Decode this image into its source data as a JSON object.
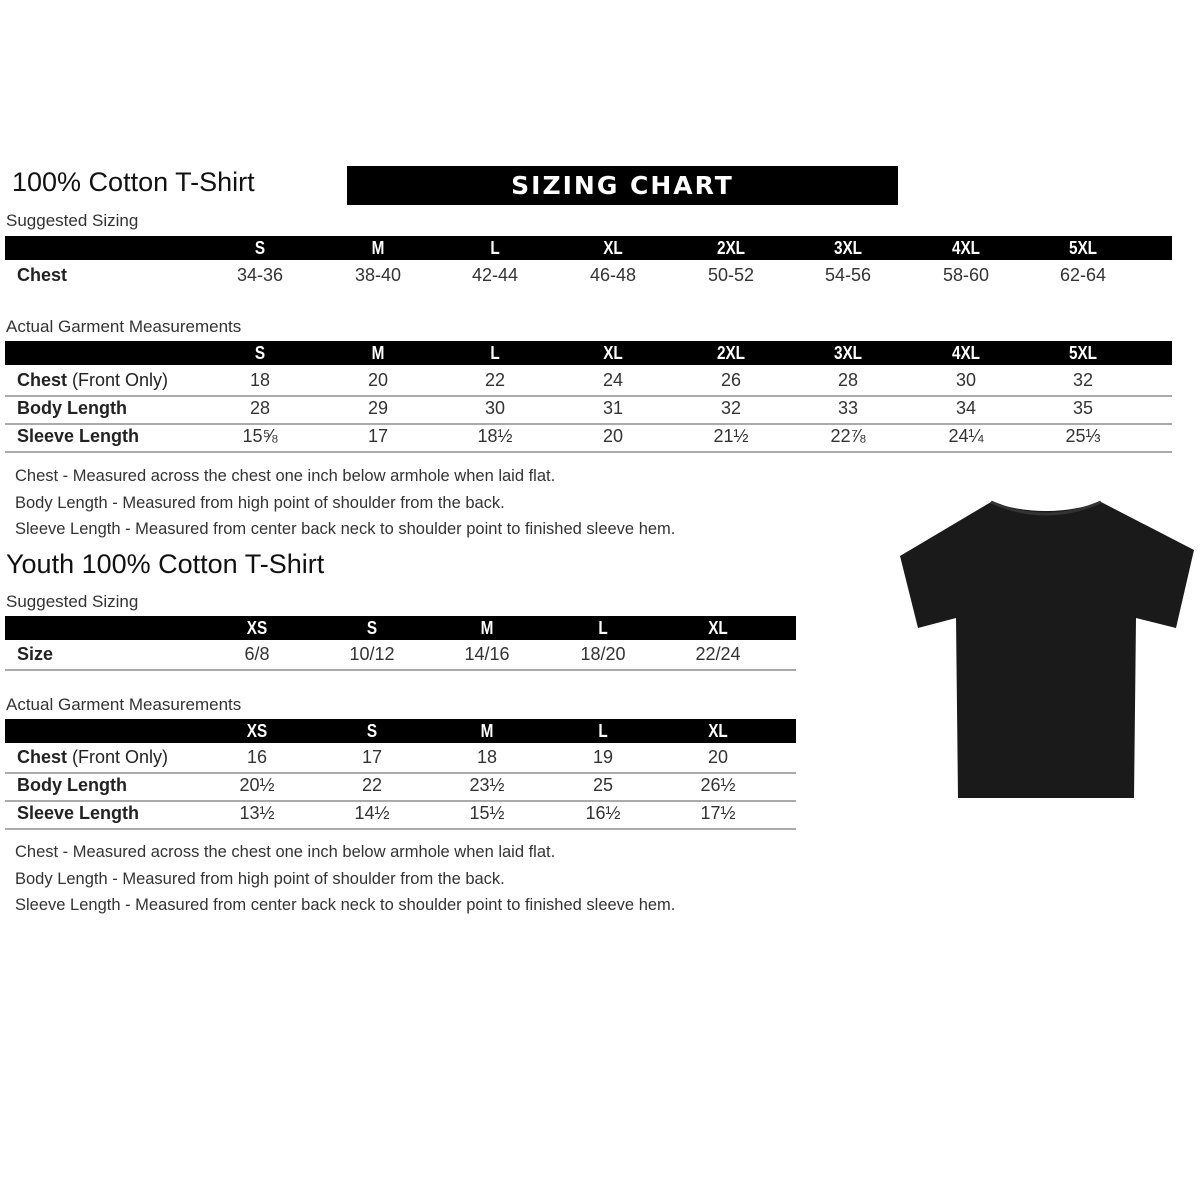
{
  "adult": {
    "title": "100% Cotton T-Shirt",
    "banner": "SIZING CHART",
    "suggested": {
      "heading": "Suggested Sizing",
      "sizes": [
        "S",
        "M",
        "L",
        "XL",
        "2XL",
        "3XL",
        "4XL",
        "5XL"
      ],
      "rows": [
        {
          "label": "Chest",
          "values": [
            "34-36",
            "38-40",
            "42-44",
            "46-48",
            "50-52",
            "54-56",
            "58-60",
            "62-64"
          ]
        }
      ]
    },
    "actual": {
      "heading": "Actual Garment Measurements",
      "sizes": [
        "S",
        "M",
        "L",
        "XL",
        "2XL",
        "3XL",
        "4XL",
        "5XL"
      ],
      "rows": [
        {
          "label": "Chest",
          "label_suffix": " (Front Only)",
          "values": [
            "18",
            "20",
            "22",
            "24",
            "26",
            "28",
            "30",
            "32"
          ]
        },
        {
          "label": "Body Length",
          "label_suffix": "",
          "values": [
            "28",
            "29",
            "30",
            "31",
            "32",
            "33",
            "34",
            "35"
          ]
        },
        {
          "label": "Sleeve Length",
          "label_suffix": "",
          "values": [
            "15⅝",
            "17",
            "18½",
            "20",
            "21½",
            "22⅞",
            "24¼",
            "25⅓"
          ]
        }
      ]
    },
    "notes": [
      "Chest - Measured across the chest one inch below armhole when laid flat.",
      "Body Length - Measured from high point of shoulder from the back.",
      "Sleeve Length - Measured from center back neck to shoulder point to finished sleeve hem."
    ]
  },
  "youth": {
    "title": "Youth 100% Cotton T-Shirt",
    "suggested": {
      "heading": "Suggested Sizing",
      "sizes": [
        "XS",
        "S",
        "M",
        "L",
        "XL"
      ],
      "rows": [
        {
          "label": "Size",
          "values": [
            "6/8",
            "10/12",
            "14/16",
            "18/20",
            "22/24"
          ]
        }
      ]
    },
    "actual": {
      "heading": "Actual Garment Measurements",
      "sizes": [
        "XS",
        "S",
        "M",
        "L",
        "XL"
      ],
      "rows": [
        {
          "label": "Chest",
          "label_suffix": " (Front Only)",
          "values": [
            "16",
            "17",
            "18",
            "19",
            "20"
          ]
        },
        {
          "label": "Body Length",
          "label_suffix": "",
          "values": [
            "20½",
            "22",
            "23½",
            "25",
            "26½"
          ]
        },
        {
          "label": "Sleeve Length",
          "label_suffix": "",
          "values": [
            "13½",
            "14½",
            "15½",
            "16½",
            "17½"
          ]
        }
      ]
    },
    "notes": [
      "Chest - Measured across the chest one inch below armhole when laid flat.",
      "Body Length - Measured from high point of shoulder from the back.",
      "Sleeve Length - Measured from center back neck to shoulder point to finished sleeve hem."
    ]
  },
  "image": {
    "icon": "tshirt-icon",
    "color": "#1a1a1a"
  }
}
